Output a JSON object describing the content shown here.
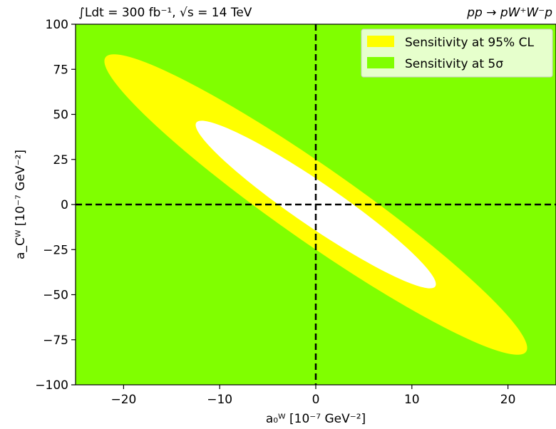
{
  "chart_data": {
    "type": "contour",
    "title_left": "∫Ldt = 300 fb⁻¹, √s = 14 TeV",
    "title_right": "pp → pW⁺W⁻p",
    "xlabel": "a₀ᵂ [10⁻⁷ GeV⁻²]",
    "ylabel": "a_Cᵂ [10⁻⁷ GeV⁻²]",
    "xlim": [
      -25,
      25
    ],
    "ylim": [
      -100,
      100
    ],
    "xticks": [
      -20,
      -10,
      0,
      10,
      20
    ],
    "xtick_labels": [
      "−20",
      "−10",
      "0",
      "10",
      "20"
    ],
    "yticks": [
      100,
      75,
      50,
      25,
      0,
      -25,
      -50,
      -75,
      -100
    ],
    "ytick_labels": [
      "100",
      "75",
      "50",
      "25",
      "0",
      "−25",
      "−50",
      "−75",
      "−100"
    ],
    "reference_lines": {
      "x": 0,
      "y": 0,
      "style": "dashed"
    },
    "legend_position": "top-right",
    "regions": [
      {
        "name": "Sensitivity at 5σ",
        "color": "#80ff00",
        "description_of_fill": "everything outside the 95% CL ellipse"
      },
      {
        "name": "Sensitivity at 95% CL",
        "color": "#ffff00",
        "ellipse": {
          "center": [
            0,
            0
          ],
          "x_extent": [
            -22,
            22
          ],
          "y_extent": [
            -84,
            84
          ],
          "x_intercepts": [
            -6.6,
            6.6
          ],
          "y_intercepts": [
            -25,
            25
          ]
        }
      },
      {
        "name": "",
        "color": "#ffffff",
        "ellipse": {
          "center": [
            0,
            0
          ],
          "x_extent": [
            -12.5,
            12.5
          ],
          "y_extent": [
            -47,
            47
          ],
          "x_intercepts": [
            -3.9,
            3.9
          ],
          "y_intercepts": [
            -14.5,
            14.5
          ]
        }
      }
    ],
    "legend": [
      {
        "label": "Sensitivity at 95% CL",
        "color": "#ffff00"
      },
      {
        "label": "Sensitivity at 5σ",
        "color": "#80ff00"
      }
    ]
  }
}
